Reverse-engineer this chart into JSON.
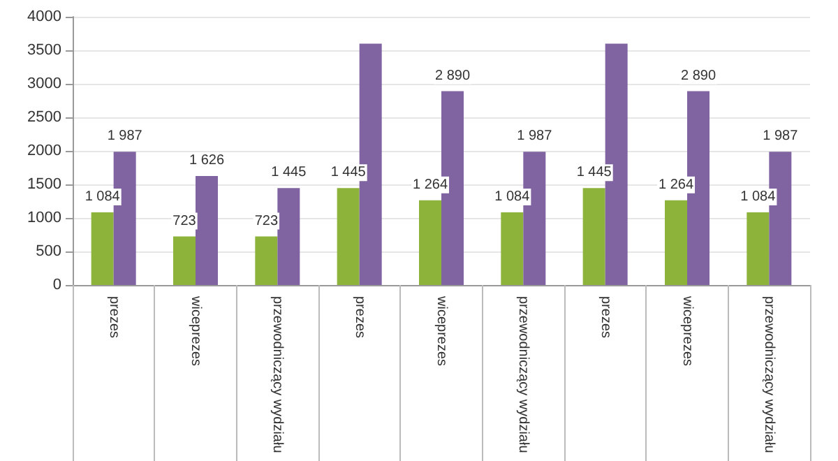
{
  "chart_data": {
    "type": "bar",
    "categories": [
      "prezes",
      "wiceprezes",
      "przewodniczący wydziału",
      "prezes",
      "wiceprezes",
      "przewodniczący wydziału",
      "prezes",
      "wiceprezes",
      "przewodniczący wydziału"
    ],
    "series": [
      {
        "color": "#8db33a",
        "values": [
          1084,
          723,
          723,
          1445,
          1264,
          1084,
          1445,
          1264,
          1084
        ],
        "value_labels": [
          "1 084",
          "723",
          "723",
          "1 445",
          "1 264",
          "1 084",
          "1 445",
          "1 264",
          "1 084"
        ]
      },
      {
        "color": "#8064a2",
        "values": [
          1987,
          1626,
          1445,
          3600,
          2890,
          1987,
          3600,
          2890,
          1987
        ],
        "value_labels": [
          "1 987",
          "1 626",
          "1 445",
          null,
          "2 890",
          "1 987",
          null,
          "2 890",
          "1 987"
        ]
      }
    ],
    "ylim": [
      0,
      4000
    ],
    "yticks": [
      0,
      500,
      1000,
      1500,
      2000,
      2500,
      3000,
      3500,
      4000
    ],
    "grid": "y"
  }
}
